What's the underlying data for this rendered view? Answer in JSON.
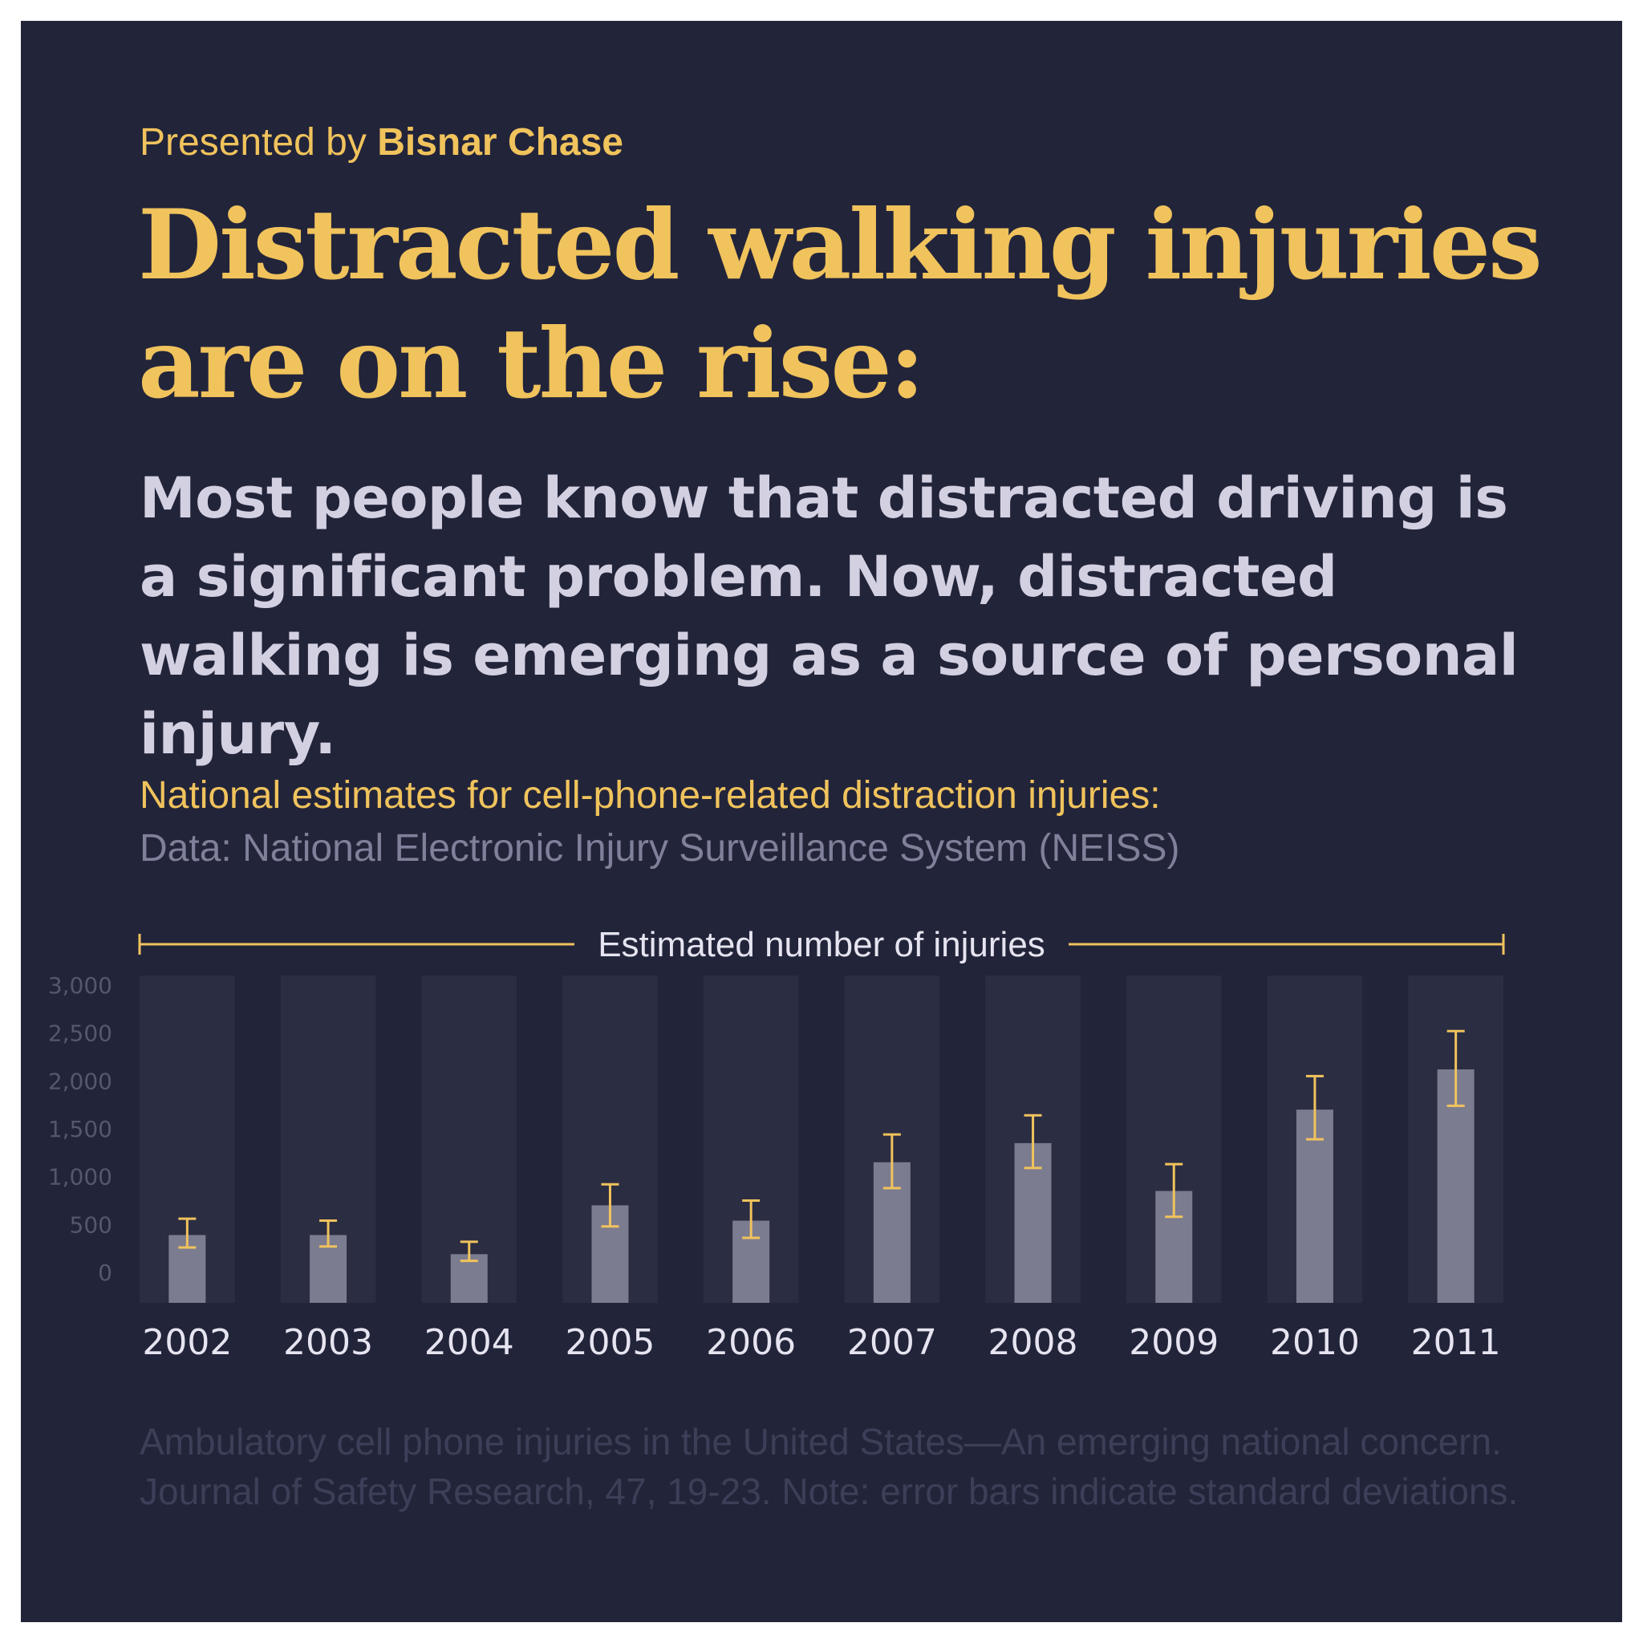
{
  "header": {
    "presented_prefix": "Presented by ",
    "presented_brand": "Bisnar Chase",
    "headline_line1": "Distracted walking injuries",
    "headline_line2": "are on the rise:",
    "lede": "Most people know that distracted driving is a significant problem. Now, distracted walking is emerging as a source of personal injury."
  },
  "chart_title": "National estimates for cell-phone-related distraction injuries:",
  "chart_source": "Data: National Electronic Injury Surveillance System (NEISS)",
  "footnote_line1": "Ambulatory cell phone injuries in the United States—An emerging national concern.",
  "footnote_line2": "Journal of Safety Research, 47, 19-23. Note: error bars indicate standard deviations.",
  "colors": {
    "background": "#22243a",
    "accent": "#f0c35c",
    "bar": "#7c7c90",
    "column_band": "#2b2d42",
    "axis_text": "#55576e",
    "year_text": "#e6e4f0"
  },
  "chart_data": {
    "type": "bar",
    "title": "Estimated number of injuries",
    "categories": [
      "2002",
      "2003",
      "2004",
      "2005",
      "2006",
      "2007",
      "2008",
      "2009",
      "2010",
      "2011"
    ],
    "values": [
      390,
      390,
      190,
      700,
      540,
      1150,
      1350,
      850,
      1700,
      2120
    ],
    "error_low": [
      260,
      270,
      120,
      480,
      360,
      880,
      1090,
      580,
      1390,
      1740
    ],
    "error_high": [
      560,
      540,
      320,
      920,
      750,
      1440,
      1640,
      1130,
      2050,
      2520
    ],
    "yticks": [
      "3,000",
      "2,500",
      "2,000",
      "1,500",
      "1,000",
      "500",
      "0"
    ],
    "ylim": [
      0,
      3000
    ],
    "grid": false,
    "legend": "none"
  }
}
